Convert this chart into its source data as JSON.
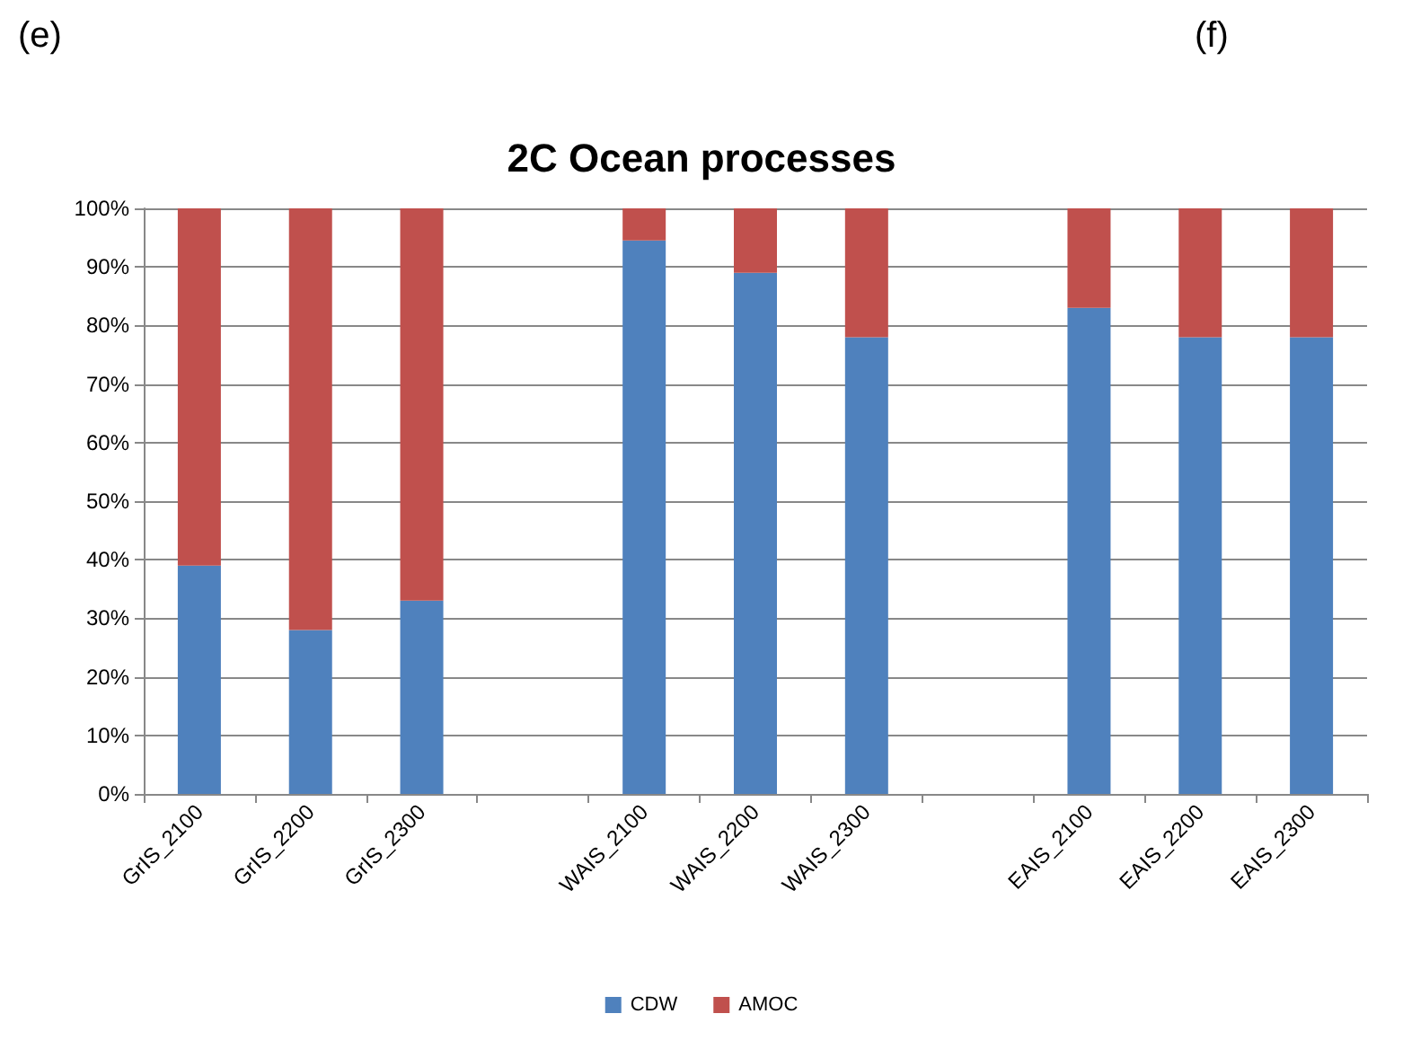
{
  "chart_data": {
    "type": "bar",
    "stacked": true,
    "title": "2C Ocean processes",
    "annotations": [
      "(e)",
      "(f)"
    ],
    "categories": [
      "GrIS_2100",
      "GrIS_2200",
      "GrIS_2300",
      null,
      "WAIS_2100",
      "WAIS_2200",
      "WAIS_2300",
      null,
      "EAIS_2100",
      "EAIS_2200",
      "EAIS_2300"
    ],
    "series": [
      {
        "name": "CDW",
        "color": "#4f81bd",
        "values": [
          39,
          28,
          33,
          null,
          94.5,
          89,
          78,
          null,
          83,
          78,
          78
        ]
      },
      {
        "name": "AMOC",
        "color": "#c0504d",
        "values": [
          61,
          72,
          67,
          null,
          5.5,
          11,
          22,
          null,
          17,
          22,
          22
        ]
      }
    ],
    "ylim": [
      0,
      100
    ],
    "yticks": [
      {
        "value": 0,
        "label": "0%"
      },
      {
        "value": 10,
        "label": "10%"
      },
      {
        "value": 20,
        "label": "20%"
      },
      {
        "value": 30,
        "label": "30%"
      },
      {
        "value": 40,
        "label": "40%"
      },
      {
        "value": 50,
        "label": "50%"
      },
      {
        "value": 60,
        "label": "60%"
      },
      {
        "value": 70,
        "label": "70%"
      },
      {
        "value": 80,
        "label": "80%"
      },
      {
        "value": 90,
        "label": "90%"
      },
      {
        "value": 100,
        "label": "100%"
      }
    ],
    "grid": "y",
    "legend": "bottom"
  }
}
